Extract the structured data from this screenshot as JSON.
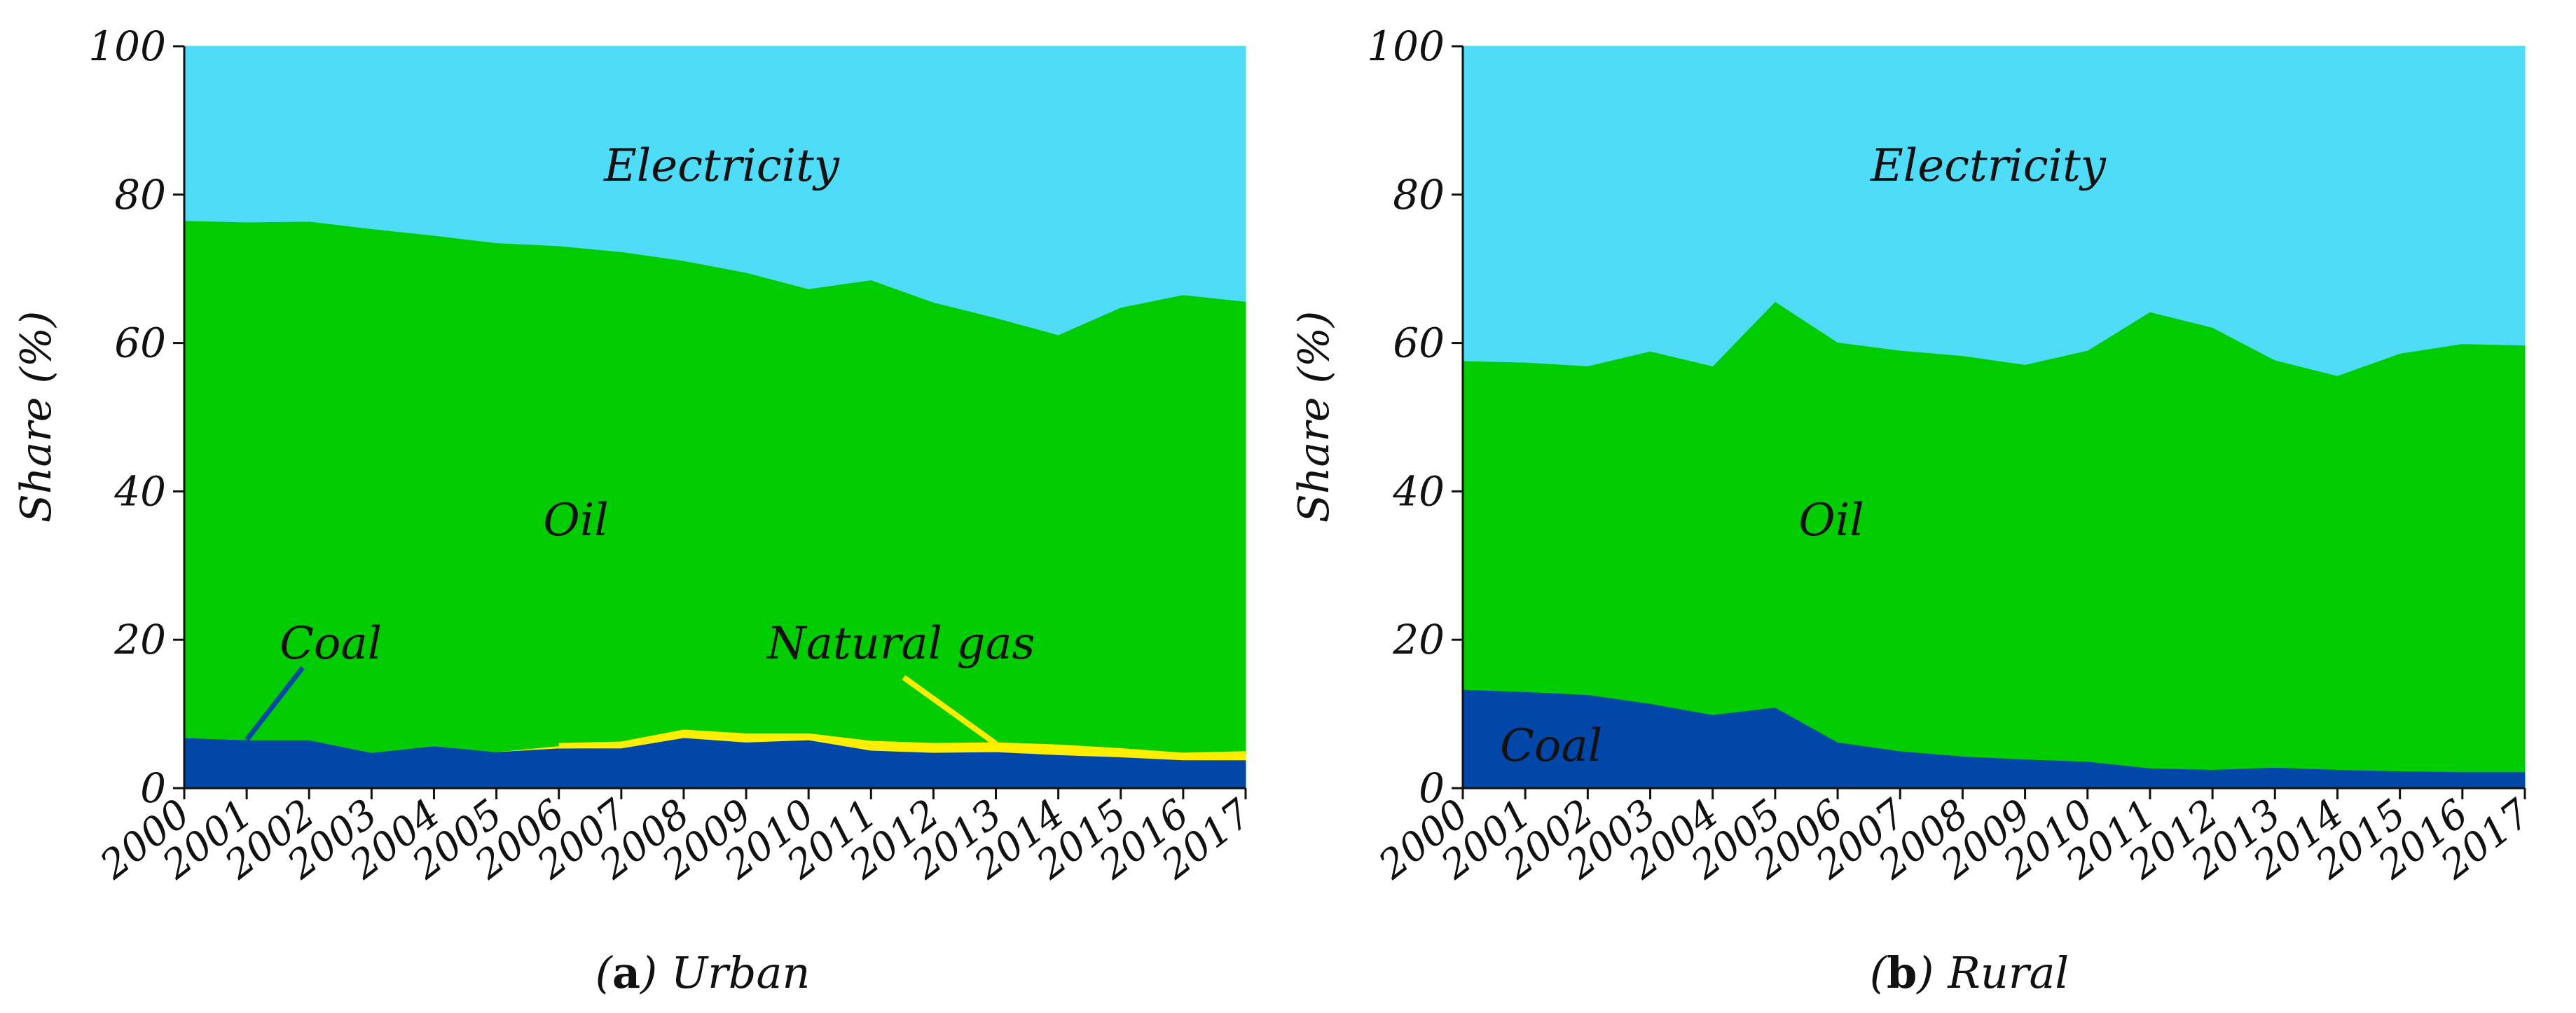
{
  "figure": {
    "background": "#ffffff"
  },
  "colors": {
    "electricity": "#4fdcf8",
    "oil": "#00cc00",
    "natural_gas": "#ffee00",
    "coal": "#0047a8",
    "axis": "#111111"
  },
  "chart_data": [
    {
      "type": "area",
      "caption_letter": "a",
      "caption_text": "Urban",
      "ylabel": "Share (%)",
      "ylim": [
        0,
        100
      ],
      "yticks": [
        0,
        20,
        40,
        60,
        80,
        100
      ],
      "categories": [
        "2000",
        "2001",
        "2002",
        "2003",
        "2004",
        "2005",
        "2006",
        "2007",
        "2008",
        "2009",
        "2010",
        "2011",
        "2012",
        "2013",
        "2014",
        "2015",
        "2016",
        "2017"
      ],
      "stacked": true,
      "series": [
        {
          "name": "Coal",
          "color_key": "coal",
          "values": [
            6.8,
            6.5,
            6.5,
            4.8,
            5.7,
            4.9,
            5.4,
            5.4,
            6.8,
            6.2,
            6.5,
            5.1,
            4.8,
            4.9,
            4.5,
            4.2,
            3.8,
            3.8
          ]
        },
        {
          "name": "Natural gas",
          "color_key": "natural_gas",
          "values": [
            0,
            0,
            0,
            0,
            0,
            0,
            0.3,
            0.5,
            0.7,
            0.8,
            0.5,
            0.9,
            0.9,
            0.9,
            1.0,
            0.8,
            0.6,
            0.8
          ]
        },
        {
          "name": "Oil",
          "color_key": "oil",
          "values": [
            69.7,
            69.8,
            69.9,
            70.6,
            68.8,
            68.6,
            67.4,
            66.4,
            63.6,
            62.5,
            60.3,
            62.5,
            59.8,
            57.6,
            55.6,
            59.8,
            62.1,
            61.0
          ]
        },
        {
          "name": "Electricity",
          "color_key": "electricity",
          "values": [
            23.5,
            23.7,
            23.6,
            24.6,
            25.5,
            26.5,
            26.9,
            27.7,
            28.9,
            30.5,
            32.7,
            31.5,
            34.5,
            36.6,
            38.9,
            35.2,
            33.5,
            34.4
          ]
        }
      ],
      "annotations": {
        "electricity": "Electricity",
        "oil": "Oil",
        "coal": "Coal",
        "natural_gas": "Natural gas"
      }
    },
    {
      "type": "area",
      "caption_letter": "b",
      "caption_text": "Rural",
      "ylabel": "Share (%)",
      "ylim": [
        0,
        100
      ],
      "yticks": [
        0,
        20,
        40,
        60,
        80,
        100
      ],
      "categories": [
        "2000",
        "2001",
        "2002",
        "2003",
        "2004",
        "2005",
        "2006",
        "2007",
        "2008",
        "2009",
        "2010",
        "2011",
        "2012",
        "2013",
        "2014",
        "2015",
        "2016",
        "2017"
      ],
      "stacked": true,
      "series": [
        {
          "name": "Coal",
          "color_key": "coal",
          "values": [
            13.3,
            13.0,
            12.6,
            11.4,
            9.9,
            10.9,
            6.2,
            5.0,
            4.3,
            3.9,
            3.6,
            2.7,
            2.5,
            2.8,
            2.5,
            2.3,
            2.2,
            2.2
          ]
        },
        {
          "name": "Oil",
          "color_key": "oil",
          "values": [
            44.3,
            44.4,
            44.3,
            47.5,
            47.0,
            54.7,
            53.9,
            54.0,
            54.0,
            53.2,
            55.4,
            61.5,
            59.6,
            54.9,
            53.1,
            56.3,
            57.7,
            57.5
          ]
        },
        {
          "name": "Electricity",
          "color_key": "electricity",
          "values": [
            42.4,
            42.6,
            43.1,
            41.1,
            43.1,
            34.4,
            39.9,
            41.0,
            41.7,
            42.9,
            41.0,
            35.8,
            37.9,
            42.3,
            44.4,
            41.4,
            40.1,
            40.3
          ]
        }
      ],
      "annotations": {
        "electricity": "Electricity",
        "oil": "Oil",
        "coal": "Coal"
      }
    }
  ]
}
